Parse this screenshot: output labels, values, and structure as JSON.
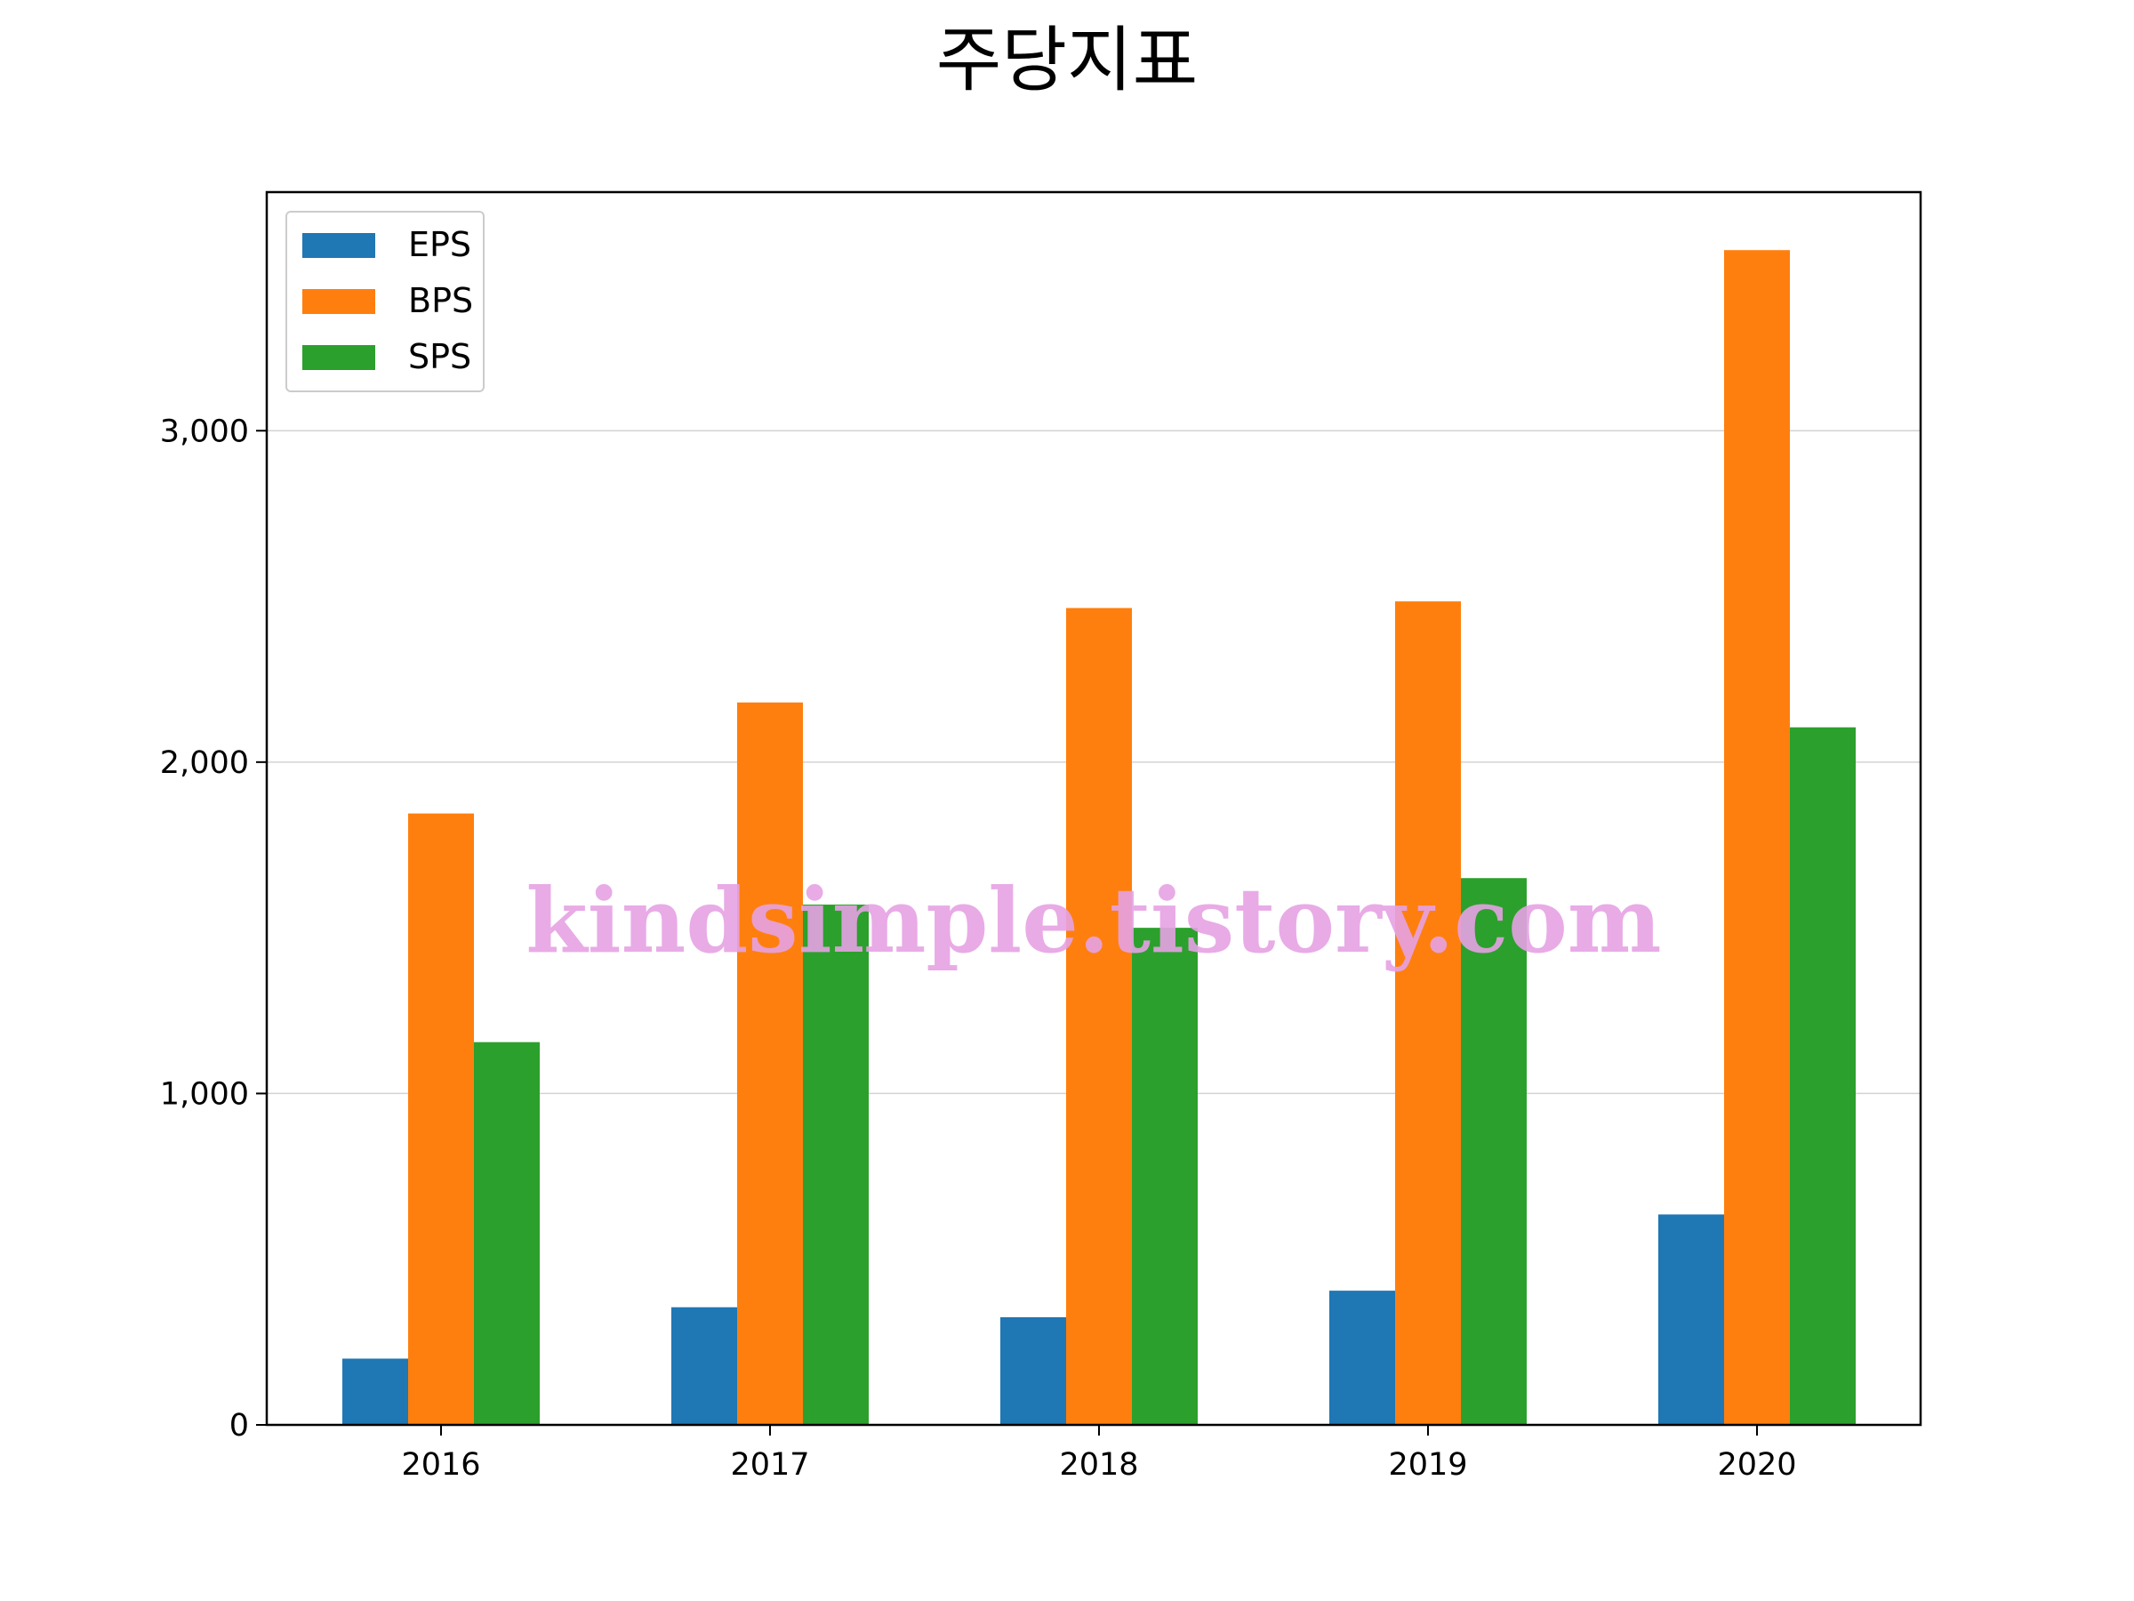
{
  "chart_data": {
    "type": "bar",
    "title": "주당지표",
    "xlabel": "",
    "ylabel": "",
    "categories": [
      "2016",
      "2017",
      "2018",
      "2019",
      "2020"
    ],
    "series": [
      {
        "name": "EPS",
        "color": "#1f77b4",
        "values": [
          200,
          355,
          325,
          405,
          635
        ]
      },
      {
        "name": "BPS",
        "color": "#ff7f0e",
        "values": [
          1845,
          2180,
          2465,
          2485,
          3545
        ]
      },
      {
        "name": "SPS",
        "color": "#2ca02c",
        "values": [
          1155,
          1570,
          1500,
          1650,
          2105
        ]
      }
    ],
    "ylim": [
      0,
      3720
    ],
    "yticks": [
      0,
      1000,
      2000,
      3000
    ],
    "ytick_labels": [
      "0",
      "1,000",
      "2,000",
      "3,000"
    ],
    "grid": "y",
    "legend_position": "upper-left",
    "watermark": "kindsimple.tistory.com"
  }
}
